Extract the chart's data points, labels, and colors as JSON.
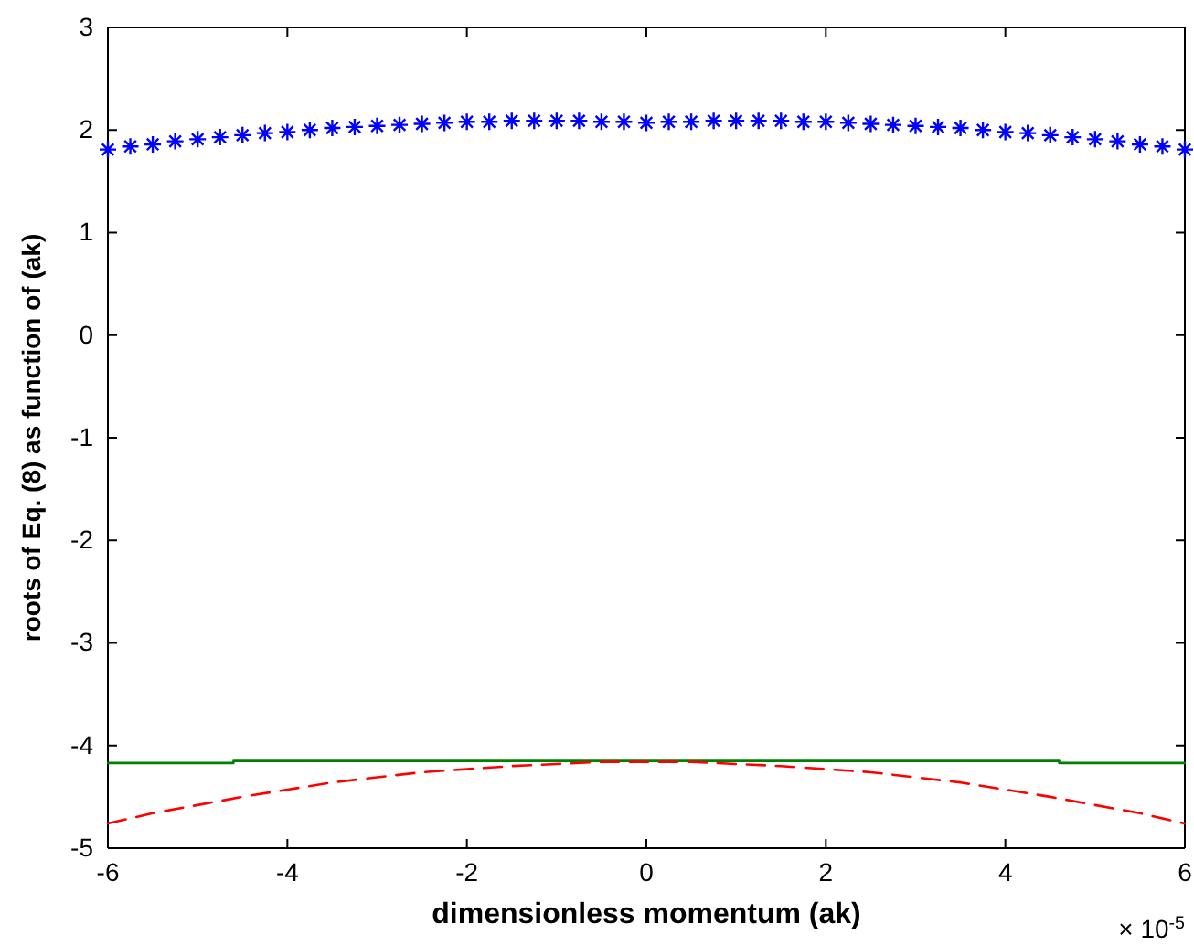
{
  "chart_data": {
    "type": "line",
    "xlabel": "dimensionless momentum (ak)",
    "ylabel": "roots of Eq. (8) as function of (ak)",
    "xlim": [
      -6,
      6
    ],
    "xticks": [
      -6,
      -4,
      -2,
      0,
      2,
      4,
      6
    ],
    "ylim": [
      -5,
      3
    ],
    "yticks": [
      -5,
      -4,
      -3,
      -2,
      -1,
      0,
      1,
      2,
      3
    ],
    "grid": false,
    "annotations": [
      "× 10$^{-5}$"
    ],
    "series": [
      {
        "type": "scatter",
        "marker": "cross",
        "color": "#0000ff",
        "x": [
          -6,
          -5.75,
          -5.5,
          -5.25,
          -5,
          -4.75,
          -4.5,
          -4.25,
          -4,
          -3.75,
          -3.5,
          -3.25,
          -3,
          -2.75,
          -2.5,
          -2.25,
          -2,
          -1.75,
          -1.5,
          -1.25,
          -1,
          -0.75,
          -0.5,
          -0.25,
          0,
          0.25,
          0.5,
          0.75,
          1,
          1.25,
          1.5,
          1.75,
          2,
          2.25,
          2.5,
          2.75,
          3,
          3.25,
          3.5,
          3.75,
          4,
          4.25,
          4.5,
          4.75,
          5,
          5.25,
          5.5,
          5.75,
          6
        ],
        "values": [
          1.81,
          1.84,
          1.86,
          1.89,
          1.91,
          1.93,
          1.95,
          1.97,
          1.98,
          2.0,
          2.02,
          2.03,
          2.04,
          2.05,
          2.06,
          2.07,
          2.08,
          2.08,
          2.09,
          2.09,
          2.09,
          2.09,
          2.08,
          2.08,
          2.07,
          2.08,
          2.08,
          2.09,
          2.09,
          2.09,
          2.09,
          2.08,
          2.08,
          2.07,
          2.06,
          2.05,
          2.04,
          2.03,
          2.02,
          2.0,
          1.98,
          1.97,
          1.95,
          1.93,
          1.91,
          1.89,
          1.86,
          1.84,
          1.81
        ]
      },
      {
        "line_style": "solid",
        "color": "#008000",
        "x": [
          -6,
          -4.6,
          -4.6,
          4.6,
          4.6,
          6
        ],
        "values": [
          -4.17,
          -4.17,
          -4.15,
          -4.15,
          -4.17,
          -4.17
        ]
      },
      {
        "line_style": "dashed",
        "color": "#ff0000",
        "x": [
          -6,
          -5.5,
          -5,
          -4.5,
          -4,
          -3.5,
          -3,
          -2.5,
          -2,
          -1.5,
          -1,
          -0.5,
          0,
          0.5,
          1,
          1.5,
          2,
          2.5,
          3,
          3.5,
          4,
          4.5,
          5,
          5.5,
          6
        ],
        "values": [
          -4.76,
          -4.66,
          -4.58,
          -4.5,
          -4.43,
          -4.36,
          -4.31,
          -4.26,
          -4.23,
          -4.2,
          -4.18,
          -4.16,
          -4.16,
          -4.16,
          -4.18,
          -4.2,
          -4.23,
          -4.26,
          -4.31,
          -4.36,
          -4.43,
          -4.5,
          -4.58,
          -4.66,
          -4.76
        ]
      }
    ]
  }
}
